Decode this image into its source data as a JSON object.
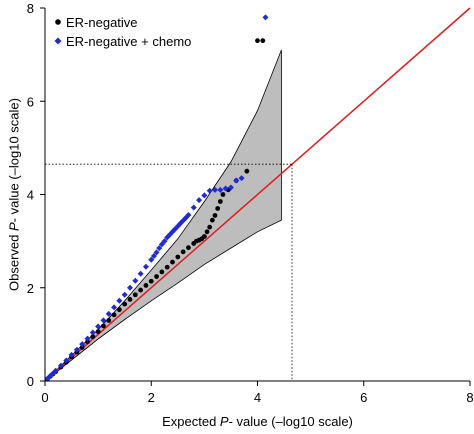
{
  "chart_data": {
    "type": "scatter",
    "title": "",
    "xlabel": {
      "prefix": "Expected ",
      "italic": "P",
      "suffix": "- value (–log10 scale)"
    },
    "ylabel": {
      "prefix": "Observed ",
      "italic": "P",
      "suffix": "- value (–log10 scale)"
    },
    "xlim": [
      0,
      8
    ],
    "ylim": [
      0,
      8
    ],
    "xticks": [
      0,
      2,
      4,
      6,
      8
    ],
    "yticks": [
      0,
      2,
      4,
      6,
      8
    ],
    "grid": false,
    "legend_position": "top-left",
    "reference_line": {
      "from": [
        0,
        0
      ],
      "to": [
        8,
        8
      ],
      "color": "#e31a1c"
    },
    "threshold": {
      "x": 4.65,
      "y": 4.65,
      "style": "dotted"
    },
    "confidence_band": {
      "color": "#bdbdbd",
      "x": [
        0,
        0.5,
        1,
        1.5,
        2,
        2.5,
        3,
        3.5,
        4,
        4.45
      ],
      "upper": [
        0,
        0.55,
        1.1,
        1.72,
        2.38,
        3.05,
        3.85,
        4.7,
        5.8,
        7.1
      ],
      "lower": [
        0,
        0.45,
        0.9,
        1.32,
        1.72,
        2.1,
        2.5,
        2.85,
        3.2,
        3.45
      ]
    },
    "series": [
      {
        "name": "ER-negative",
        "color": "#000000",
        "marker": "circle",
        "x": [
          0.05,
          0.1,
          0.15,
          0.2,
          0.3,
          0.4,
          0.5,
          0.6,
          0.7,
          0.8,
          0.9,
          1.0,
          1.1,
          1.2,
          1.3,
          1.4,
          1.5,
          1.6,
          1.7,
          1.8,
          1.9,
          2.0,
          2.1,
          2.2,
          2.3,
          2.4,
          2.5,
          2.6,
          2.7,
          2.8,
          2.85,
          2.9,
          2.95,
          3.0,
          3.05,
          3.1,
          3.15,
          3.2,
          3.25,
          3.3,
          3.35,
          3.45,
          3.6,
          3.8,
          4.0,
          4.1
        ],
        "y": [
          0.05,
          0.1,
          0.15,
          0.2,
          0.3,
          0.4,
          0.52,
          0.62,
          0.72,
          0.84,
          0.95,
          1.06,
          1.18,
          1.3,
          1.42,
          1.53,
          1.65,
          1.75,
          1.85,
          1.95,
          2.05,
          2.14,
          2.24,
          2.34,
          2.44,
          2.55,
          2.66,
          2.77,
          2.86,
          2.95,
          3.0,
          3.02,
          3.05,
          3.1,
          3.2,
          3.3,
          3.45,
          3.55,
          3.7,
          3.85,
          4.0,
          4.1,
          4.3,
          4.5,
          7.3,
          7.3
        ]
      },
      {
        "name": "ER-negative + chemo",
        "color": "#1f2ad8",
        "marker": "diamond",
        "x": [
          0.05,
          0.1,
          0.15,
          0.2,
          0.3,
          0.4,
          0.5,
          0.6,
          0.7,
          0.8,
          0.9,
          1.0,
          1.1,
          1.2,
          1.3,
          1.4,
          1.5,
          1.6,
          1.7,
          1.8,
          1.9,
          2.0,
          2.05,
          2.1,
          2.15,
          2.2,
          2.25,
          2.3,
          2.35,
          2.4,
          2.45,
          2.5,
          2.55,
          2.6,
          2.65,
          2.7,
          2.8,
          2.9,
          3.0,
          3.1,
          3.2,
          3.3,
          3.4,
          3.5,
          3.6,
          3.7,
          4.15
        ],
        "y": [
          0.05,
          0.11,
          0.16,
          0.22,
          0.33,
          0.44,
          0.56,
          0.67,
          0.79,
          0.91,
          1.04,
          1.17,
          1.3,
          1.44,
          1.58,
          1.72,
          1.85,
          2.0,
          2.15,
          2.3,
          2.45,
          2.6,
          2.68,
          2.76,
          2.85,
          2.93,
          3.0,
          3.08,
          3.14,
          3.2,
          3.26,
          3.32,
          3.38,
          3.44,
          3.5,
          3.56,
          3.72,
          3.88,
          3.98,
          4.08,
          4.1,
          4.1,
          4.13,
          4.15,
          4.3,
          4.35,
          7.8
        ]
      }
    ]
  }
}
